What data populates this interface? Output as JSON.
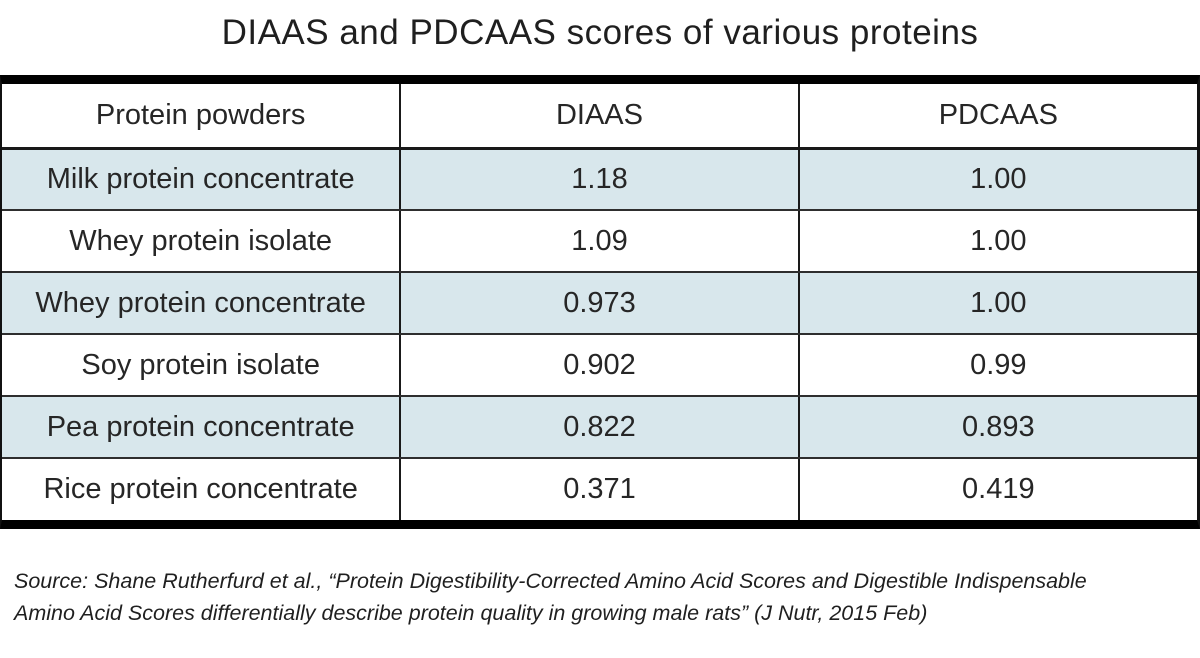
{
  "title": "DIAAS and PDCAAS scores of various proteins",
  "table": {
    "headers": [
      "Protein powders",
      "DIAAS",
      "PDCAAS"
    ],
    "rows": [
      {
        "name": "Milk protein concentrate",
        "diaas": "1.18",
        "pdcaas": "1.00"
      },
      {
        "name": "Whey protein isolate",
        "diaas": "1.09",
        "pdcaas": "1.00"
      },
      {
        "name": "Whey protein concentrate",
        "diaas": "0.973",
        "pdcaas": "1.00"
      },
      {
        "name": "Soy protein isolate",
        "diaas": "0.902",
        "pdcaas": "0.99"
      },
      {
        "name": "Pea protein concentrate",
        "diaas": "0.822",
        "pdcaas": "0.893"
      },
      {
        "name": "Rice protein concentrate",
        "diaas": "0.371",
        "pdcaas": "0.419"
      }
    ]
  },
  "source": {
    "line1": "Source: Shane Rutherfurd et al., “Protein Digestibility-Corrected Amino Acid Scores and Digestible Indispensable",
    "line2": "Amino Acid Scores differentially describe protein quality in growing male rats” (J Nutr, 2015 Feb)"
  },
  "colors": {
    "row_highlight": "#d8e7ec",
    "bar_border": "#000000",
    "grid_line": "#2e2e2e",
    "text": "#262626"
  },
  "chart_data": {
    "type": "table",
    "title": "DIAAS and PDCAAS scores of various proteins",
    "columns": [
      "Protein powders",
      "DIAAS",
      "PDCAAS"
    ],
    "rows": [
      [
        "Milk protein concentrate",
        1.18,
        1.0
      ],
      [
        "Whey protein isolate",
        1.09,
        1.0
      ],
      [
        "Whey protein concentrate",
        0.973,
        1.0
      ],
      [
        "Soy protein isolate",
        0.902,
        0.99
      ],
      [
        "Pea protein concentrate",
        0.822,
        0.893
      ],
      [
        "Rice protein concentrate",
        0.371,
        0.419
      ]
    ],
    "source": "Shane Rutherfurd et al., “Protein Digestibility-Corrected Amino Acid Scores and Digestible Indispensable Amino Acid Scores differentially describe protein quality in growing male rats” (J Nutr, 2015 Feb)",
    "layout": {
      "row_striping": "alternate light blue starting at first data row",
      "grid": true
    }
  }
}
